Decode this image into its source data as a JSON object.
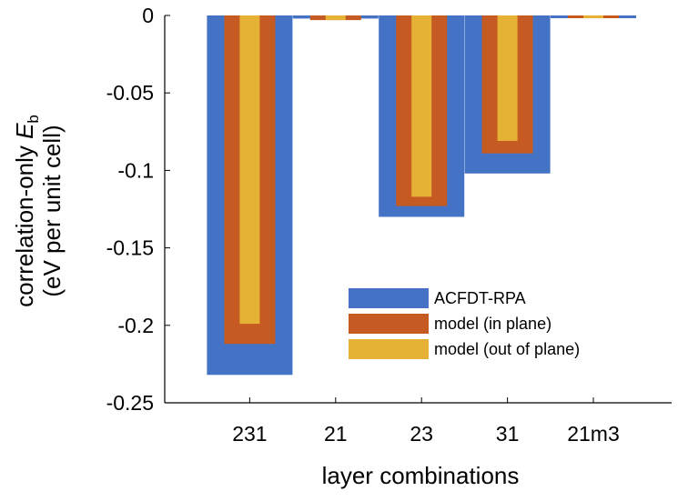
{
  "chart_data": {
    "type": "bar",
    "title": "",
    "xlabel": "layer combinations",
    "ylabel": {
      "line1_prefix": "correlation-only ",
      "symbol": "E",
      "subscript": "b",
      "line2": "(eV per unit cell)"
    },
    "categories": [
      "231",
      "21",
      "23",
      "31",
      "21m3"
    ],
    "series": [
      {
        "name": "ACFDT-RPA",
        "color": "#4472c4",
        "values": [
          -0.232,
          -0.002,
          -0.13,
          -0.102,
          -0.001
        ]
      },
      {
        "name": "model (in plane)",
        "color": "#c65a23",
        "values": [
          -0.212,
          -0.003,
          -0.123,
          -0.089,
          -0.0015
        ]
      },
      {
        "name": "model (out of plane)",
        "color": "#e6b235",
        "values": [
          -0.199,
          -0.003,
          -0.117,
          -0.081,
          -0.0015
        ]
      }
    ],
    "ylim": [
      -0.25,
      0
    ],
    "yticks": [
      0,
      -0.05,
      -0.1,
      -0.15,
      -0.2,
      -0.25
    ],
    "ytick_labels": [
      "0",
      "-0.05",
      "-0.1",
      "-0.15",
      "-0.2",
      "-0.25"
    ],
    "grid": false,
    "legend_position": "bottom-right"
  }
}
